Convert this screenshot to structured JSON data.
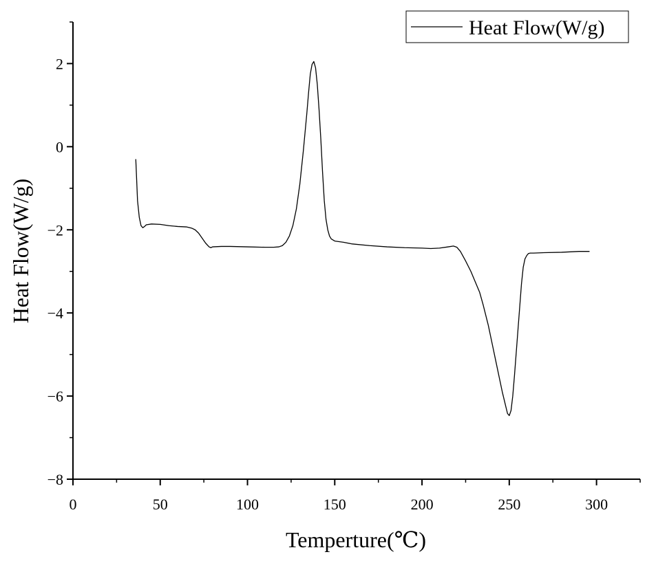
{
  "chart_data": {
    "type": "line",
    "title": "",
    "xlabel": "Temperture(℃)",
    "ylabel": "Heat Flow(W/g)",
    "xlim": [
      0,
      325
    ],
    "ylim": [
      -8,
      3
    ],
    "xticks": [
      0,
      50,
      100,
      150,
      200,
      250,
      300
    ],
    "xtick_labels": [
      "0",
      "50",
      "100",
      "150",
      "200",
      "250",
      "300"
    ],
    "yticks": [
      -8,
      -6,
      -4,
      -2,
      0,
      2
    ],
    "ytick_labels": [
      "−8",
      "−6",
      "−4",
      "−2",
      "0",
      "2"
    ],
    "grid": false,
    "legend": {
      "position": "top-right",
      "entries": [
        "Heat Flow(W/g)"
      ]
    },
    "series": [
      {
        "name": "Heat Flow(W/g)",
        "color": "#000000",
        "x": [
          36,
          36.5,
          37,
          38,
          39,
          40,
          41,
          42,
          45,
          50,
          55,
          60,
          65,
          68,
          70,
          72,
          74,
          76,
          78,
          79,
          80,
          85,
          90,
          100,
          110,
          115,
          118,
          120,
          122,
          124,
          126,
          128,
          130,
          132,
          134,
          135,
          136,
          137,
          138,
          139,
          140,
          141,
          142,
          143,
          144,
          145,
          146,
          147,
          148,
          150,
          155,
          160,
          170,
          180,
          190,
          200,
          205,
          210,
          215,
          218,
          220,
          222,
          225,
          228,
          230,
          233,
          235,
          238,
          240,
          242,
          244,
          246,
          248,
          249,
          250,
          251,
          252,
          253,
          254,
          255,
          256,
          257,
          258,
          259,
          260,
          261,
          262,
          264,
          270,
          280,
          290,
          296
        ],
        "y": [
          -0.3,
          -0.8,
          -1.3,
          -1.7,
          -1.9,
          -1.95,
          -1.92,
          -1.88,
          -1.86,
          -1.87,
          -1.9,
          -1.92,
          -1.93,
          -1.96,
          -2.0,
          -2.08,
          -2.2,
          -2.32,
          -2.41,
          -2.43,
          -2.41,
          -2.4,
          -2.4,
          -2.41,
          -2.42,
          -2.42,
          -2.41,
          -2.38,
          -2.3,
          -2.15,
          -1.9,
          -1.5,
          -0.9,
          -0.1,
          0.8,
          1.3,
          1.75,
          1.98,
          2.05,
          1.9,
          1.5,
          0.9,
          0.2,
          -0.6,
          -1.3,
          -1.75,
          -2.0,
          -2.15,
          -2.22,
          -2.27,
          -2.3,
          -2.34,
          -2.38,
          -2.41,
          -2.43,
          -2.44,
          -2.45,
          -2.44,
          -2.41,
          -2.39,
          -2.42,
          -2.52,
          -2.75,
          -3.0,
          -3.2,
          -3.5,
          -3.8,
          -4.3,
          -4.7,
          -5.1,
          -5.5,
          -5.9,
          -6.25,
          -6.42,
          -6.47,
          -6.35,
          -6.0,
          -5.5,
          -4.95,
          -4.4,
          -3.85,
          -3.3,
          -2.9,
          -2.7,
          -2.62,
          -2.57,
          -2.56,
          -2.56,
          -2.55,
          -2.54,
          -2.52,
          -2.52
        ]
      }
    ]
  }
}
